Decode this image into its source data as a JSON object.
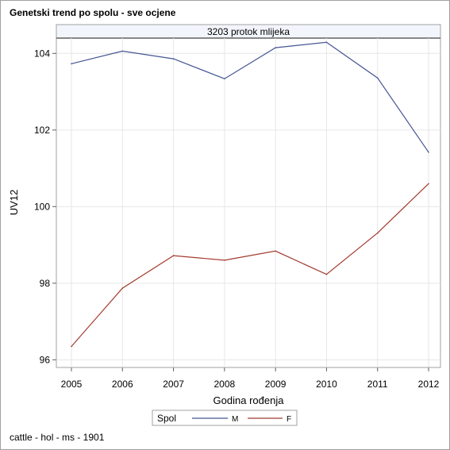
{
  "title": "Genetski trend po spolu - sve ocjene",
  "footnote": "cattle - hol - ms - 1901",
  "chart_data": {
    "type": "line",
    "panel_title": "3203 protok mlijeka",
    "xlabel": "Godina rođenja",
    "ylabel": "UV12",
    "x": [
      "2005",
      "2006",
      "2007",
      "2008",
      "2009",
      "2010",
      "2011",
      "2012"
    ],
    "yticks": [
      "96",
      "98",
      "100",
      "102",
      "104"
    ],
    "ylim": [
      95.8,
      104.4
    ],
    "grid": true,
    "legend": {
      "title": "Spol",
      "placement": "bottom-center"
    },
    "series": [
      {
        "name": "M",
        "color": "#445694",
        "values": [
          103.73,
          104.06,
          103.86,
          103.34,
          104.15,
          104.29,
          103.36,
          101.42
        ]
      },
      {
        "name": "F",
        "color": "#a23a2e",
        "values": [
          96.35,
          97.87,
          98.72,
          98.6,
          98.84,
          98.23,
          99.31,
          100.6
        ]
      }
    ]
  }
}
